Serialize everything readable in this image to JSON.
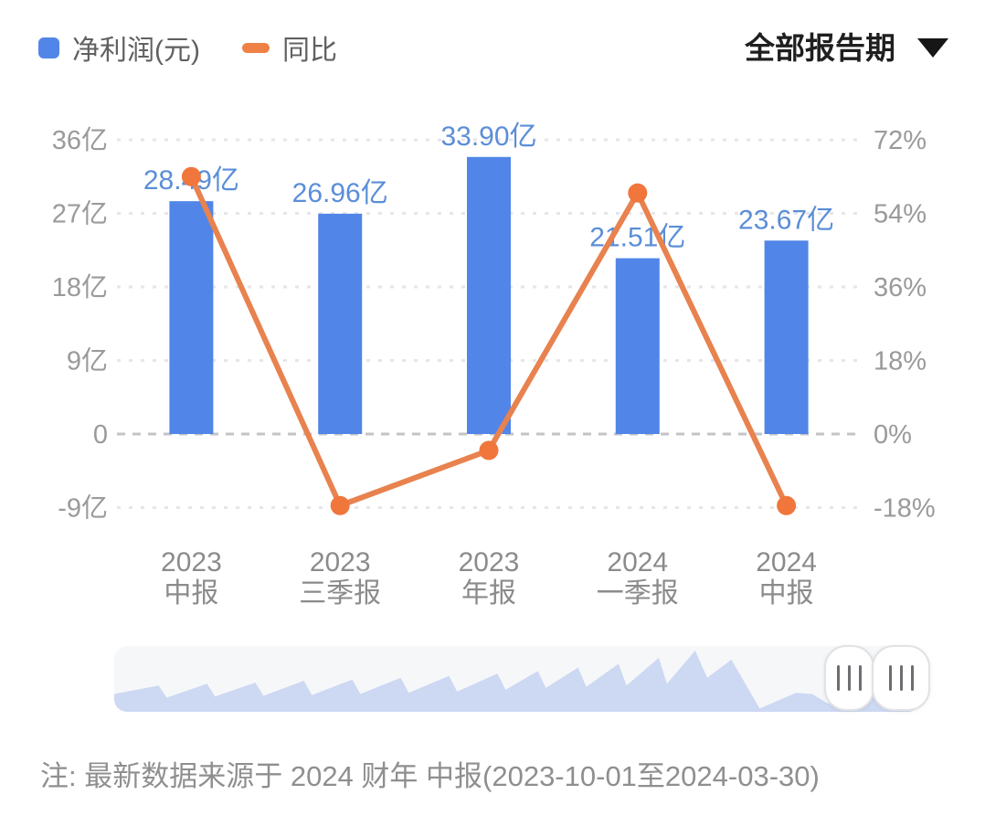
{
  "header": {
    "legend": [
      {
        "label": "净利润(元)",
        "marker": "square",
        "color": "#5185e8"
      },
      {
        "label": "同比",
        "marker": "dash",
        "color": "#ef8146"
      }
    ],
    "period_filter": {
      "label": "全部报告期",
      "icon": "caret-down-icon"
    }
  },
  "chart_data": {
    "type": "bar",
    "subtype": "bar+line combo, dual y-axis",
    "categories": [
      [
        "2023",
        "中报"
      ],
      [
        "2023",
        "三季报"
      ],
      [
        "2023",
        "年报"
      ],
      [
        "2024",
        "一季报"
      ],
      [
        "2024",
        "中报"
      ]
    ],
    "series": [
      {
        "name": "净利润(元)",
        "type": "bar",
        "axis": "left",
        "values_yi": [
          28.49,
          26.96,
          33.9,
          21.51,
          23.67
        ],
        "labels": [
          "28.49亿",
          "26.96亿",
          "33.90亿",
          "21.51亿",
          "23.67亿"
        ],
        "color": "#5185e8",
        "label_color": "#5b8ed8"
      },
      {
        "name": "同比",
        "type": "line",
        "axis": "right",
        "values_pct": [
          63,
          -17.5,
          -4,
          59,
          -17.5
        ],
        "color": "#e8824e",
        "point_color": "#f0763b"
      }
    ],
    "left_axis": {
      "tick_labels": [
        "36亿",
        "27亿",
        "18亿",
        "9亿",
        "0",
        "-9亿"
      ],
      "tick_values": [
        36,
        27,
        18,
        9,
        0,
        -9
      ],
      "unit": "亿"
    },
    "right_axis": {
      "tick_labels": [
        "72%",
        "54%",
        "36%",
        "18%",
        "0%",
        "-18%"
      ],
      "tick_values": [
        72,
        54,
        36,
        18,
        0,
        -18
      ],
      "unit": "%"
    },
    "grid": {
      "style": "dashed",
      "color": "#e6e6ea",
      "zero_line_color": "#c3c3c8"
    }
  },
  "navigator": {
    "area_color": "#cdd8f2",
    "track_color": "#f6f7f9",
    "sparkline": [
      [
        0.0,
        0.28
      ],
      [
        0.055,
        0.42
      ],
      [
        0.065,
        0.22
      ],
      [
        0.115,
        0.45
      ],
      [
        0.125,
        0.24
      ],
      [
        0.175,
        0.47
      ],
      [
        0.185,
        0.25
      ],
      [
        0.235,
        0.5
      ],
      [
        0.245,
        0.26
      ],
      [
        0.295,
        0.52
      ],
      [
        0.305,
        0.28
      ],
      [
        0.355,
        0.55
      ],
      [
        0.365,
        0.3
      ],
      [
        0.415,
        0.58
      ],
      [
        0.425,
        0.32
      ],
      [
        0.475,
        0.62
      ],
      [
        0.485,
        0.35
      ],
      [
        0.525,
        0.66
      ],
      [
        0.535,
        0.38
      ],
      [
        0.575,
        0.72
      ],
      [
        0.585,
        0.4
      ],
      [
        0.625,
        0.78
      ],
      [
        0.635,
        0.42
      ],
      [
        0.675,
        0.88
      ],
      [
        0.685,
        0.45
      ],
      [
        0.72,
        1.0
      ],
      [
        0.735,
        0.55
      ],
      [
        0.765,
        0.85
      ],
      [
        0.8,
        0.04
      ],
      [
        0.845,
        0.3
      ],
      [
        0.865,
        0.28
      ],
      [
        0.885,
        0.12
      ],
      [
        0.93,
        0.42
      ],
      [
        0.97,
        0.55
      ],
      [
        1.0,
        0.58
      ]
    ]
  },
  "footnote": "注: 最新数据来源于 2024 财年 中报(2023-10-01至2024-03-30)"
}
